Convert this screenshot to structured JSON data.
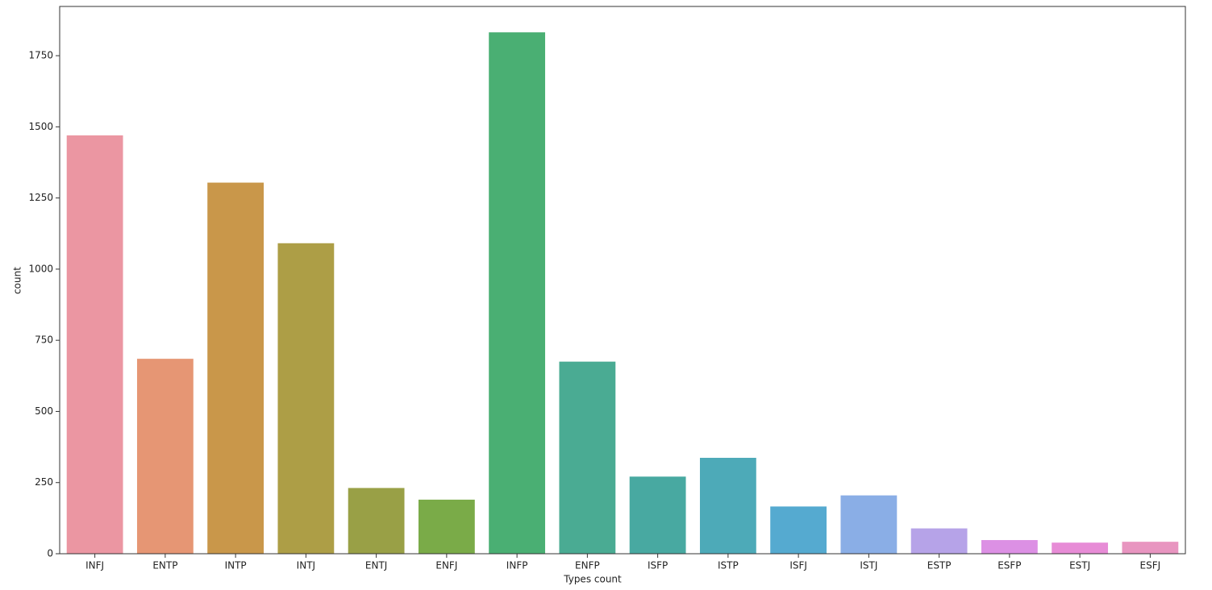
{
  "chart_data": {
    "type": "bar",
    "categories": [
      "INFJ",
      "ENTP",
      "INTP",
      "INTJ",
      "ENTJ",
      "ENFJ",
      "INFP",
      "ENFP",
      "ISFP",
      "ISTP",
      "ISFJ",
      "ISTJ",
      "ESTP",
      "ESFP",
      "ESTJ",
      "ESFJ"
    ],
    "values": [
      1470,
      685,
      1304,
      1091,
      231,
      190,
      1832,
      675,
      271,
      337,
      166,
      205,
      89,
      48,
      39,
      42
    ],
    "colors": [
      "#eb96a2",
      "#e69674",
      "#c9974a",
      "#ad9e46",
      "#99a046",
      "#7aab48",
      "#4aaf73",
      "#4aab93",
      "#48a9a1",
      "#4daab8",
      "#55aad0",
      "#8aaee6",
      "#b6a3e8",
      "#dc90e4",
      "#e78cd6",
      "#e895c0"
    ],
    "xlabel": "Types count",
    "ylabel": "count",
    "ylim": [
      0,
      1923
    ],
    "yticks": [
      0,
      250,
      500,
      750,
      1000,
      1250,
      1500,
      1750
    ]
  }
}
